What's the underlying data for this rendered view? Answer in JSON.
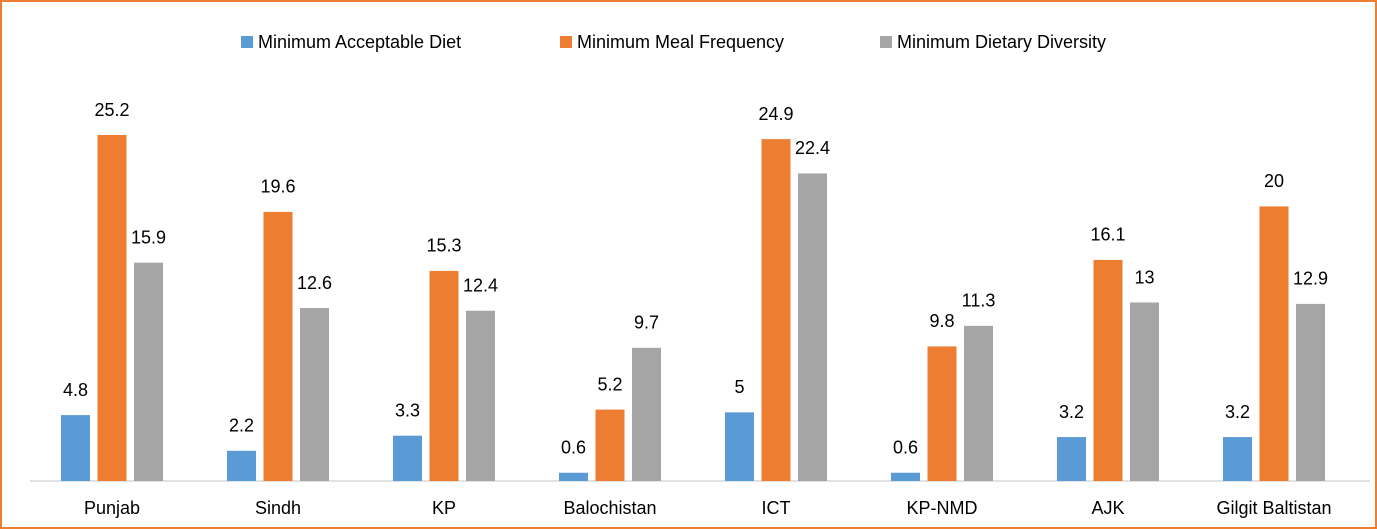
{
  "chart_data": {
    "type": "bar",
    "categories": [
      "Punjab",
      "Sindh",
      "KP",
      "Balochistan",
      "ICT",
      "KP-NMD",
      "AJK",
      "Gilgit Baltistan"
    ],
    "series": [
      {
        "name": "Minimum Acceptable Diet",
        "color": "#5b9bd5",
        "values": [
          4.8,
          2.2,
          3.3,
          0.6,
          5,
          0.6,
          3.2,
          3.2
        ]
      },
      {
        "name": "Minimum Meal Frequency",
        "color": "#ed7d31",
        "values": [
          25.2,
          19.6,
          15.3,
          5.2,
          24.9,
          9.8,
          16.1,
          20
        ]
      },
      {
        "name": "Minimum Dietary Diversity",
        "color": "#a5a5a5",
        "values": [
          15.9,
          12.6,
          12.4,
          9.7,
          22.4,
          11.3,
          13,
          12.9
        ]
      }
    ],
    "legend": "top"
  }
}
